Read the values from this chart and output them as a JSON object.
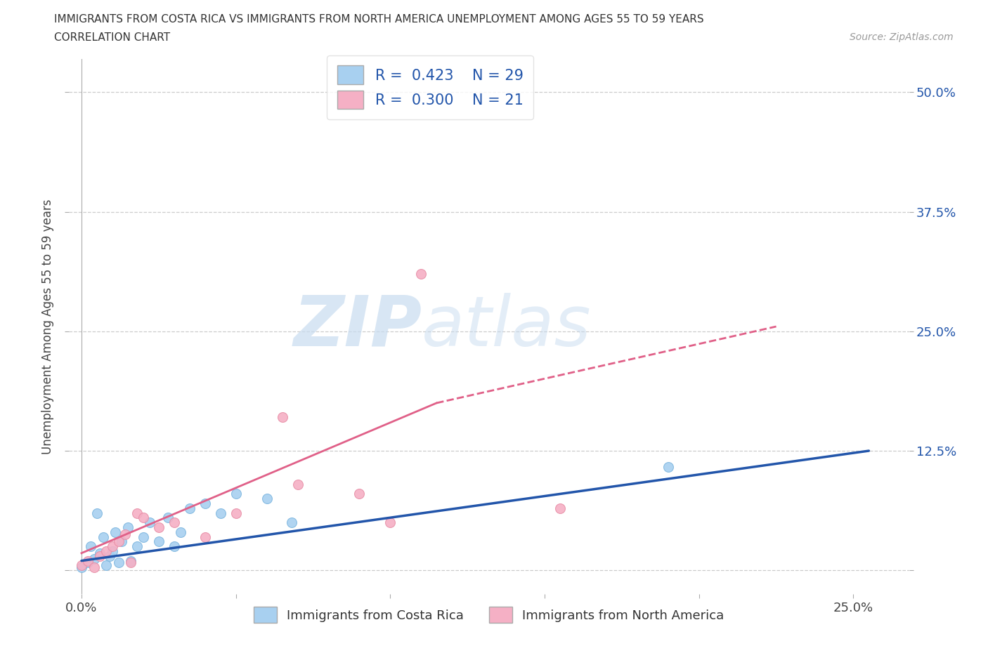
{
  "title_line1": "IMMIGRANTS FROM COSTA RICA VS IMMIGRANTS FROM NORTH AMERICA UNEMPLOYMENT AMONG AGES 55 TO 59 YEARS",
  "title_line2": "CORRELATION CHART",
  "source": "Source: ZipAtlas.com",
  "ylabel": "Unemployment Among Ages 55 to 59 years",
  "xlim": [
    -0.004,
    0.268
  ],
  "ylim": [
    -0.025,
    0.535
  ],
  "x_ticks": [
    0.0,
    0.05,
    0.1,
    0.15,
    0.2,
    0.25
  ],
  "y_ticks": [
    0.0,
    0.125,
    0.25,
    0.375,
    0.5
  ],
  "x_tick_labels": [
    "0.0%",
    "",
    "",
    "",
    "",
    "25.0%"
  ],
  "y_tick_labels_right": [
    "",
    "12.5%",
    "25.0%",
    "37.5%",
    "50.0%"
  ],
  "blue_fill": "#A8D0F0",
  "pink_fill": "#F5B0C5",
  "blue_edge": "#80B8E0",
  "pink_edge": "#E890A8",
  "blue_line": "#2255AA",
  "pink_line": "#E06088",
  "R_blue": 0.423,
  "N_blue": 29,
  "R_pink": 0.3,
  "N_pink": 21,
  "label_blue": "Immigrants from Costa Rica",
  "label_pink": "Immigrants from North America",
  "legend_text_color": "#2255AA",
  "axis_tick_color": "#2255AA",
  "title_color": "#333333",
  "blue_x": [
    0.0,
    0.002,
    0.003,
    0.004,
    0.005,
    0.006,
    0.007,
    0.008,
    0.009,
    0.01,
    0.011,
    0.012,
    0.013,
    0.015,
    0.016,
    0.018,
    0.02,
    0.022,
    0.025,
    0.028,
    0.03,
    0.032,
    0.035,
    0.04,
    0.045,
    0.05,
    0.06,
    0.068,
    0.19
  ],
  "blue_y": [
    0.003,
    0.008,
    0.025,
    0.012,
    0.06,
    0.018,
    0.035,
    0.005,
    0.015,
    0.02,
    0.04,
    0.008,
    0.03,
    0.045,
    0.01,
    0.025,
    0.035,
    0.05,
    0.03,
    0.055,
    0.025,
    0.04,
    0.065,
    0.07,
    0.06,
    0.08,
    0.075,
    0.05,
    0.108
  ],
  "pink_x": [
    0.0,
    0.002,
    0.004,
    0.006,
    0.008,
    0.01,
    0.012,
    0.014,
    0.016,
    0.018,
    0.02,
    0.025,
    0.03,
    0.04,
    0.05,
    0.065,
    0.07,
    0.09,
    0.1,
    0.11,
    0.155
  ],
  "pink_y": [
    0.005,
    0.01,
    0.003,
    0.015,
    0.02,
    0.025,
    0.03,
    0.038,
    0.008,
    0.06,
    0.055,
    0.045,
    0.05,
    0.035,
    0.06,
    0.16,
    0.09,
    0.08,
    0.05,
    0.31,
    0.065
  ]
}
